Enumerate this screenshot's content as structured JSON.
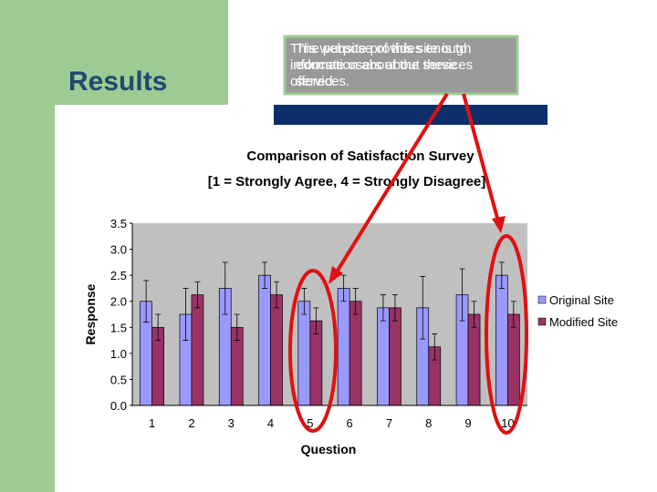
{
  "slide": {
    "title": "Results",
    "callout_lines": [
      "This website provides enough information about the services offered.",
      "The purpose of this site is to educate users about these services."
    ]
  },
  "chart_data": {
    "type": "bar",
    "title": [
      "Comparison of Satisfaction Survey",
      "[1 = Strongly Agree, 4 = Strongly Disagree]"
    ],
    "x_label": "Question",
    "y_label": "Response",
    "categories": [
      "1",
      "2",
      "3",
      "4",
      "5",
      "6",
      "7",
      "8",
      "9",
      "10"
    ],
    "series": [
      {
        "name": "Original Site",
        "color": "#9999ff",
        "values": [
          2.0,
          1.75,
          2.25,
          2.5,
          2.0,
          2.25,
          1.875,
          1.875,
          2.125,
          2.5
        ],
        "errors": [
          0.4,
          0.5,
          0.5,
          0.25,
          0.25,
          0.25,
          0.25,
          0.6,
          0.5,
          0.25
        ]
      },
      {
        "name": "Modified Site",
        "color": "#993366",
        "values": [
          1.5,
          2.125,
          1.5,
          2.125,
          1.625,
          2.0,
          1.875,
          1.125,
          1.75,
          1.75
        ],
        "errors": [
          0.25,
          0.25,
          0.25,
          0.25,
          0.25,
          0.25,
          0.25,
          0.25,
          0.25,
          0.25
        ]
      }
    ],
    "ylim": [
      0,
      3.5
    ],
    "yticks": [
      {
        "value": 0,
        "label": "0.0"
      },
      0.5,
      {
        "value": 1,
        "label": "1.0"
      },
      1.5,
      {
        "value": 2,
        "label": "2.0"
      },
      2.5,
      {
        "value": 3,
        "label": "3.0"
      },
      3.5
    ],
    "legend": "right"
  }
}
